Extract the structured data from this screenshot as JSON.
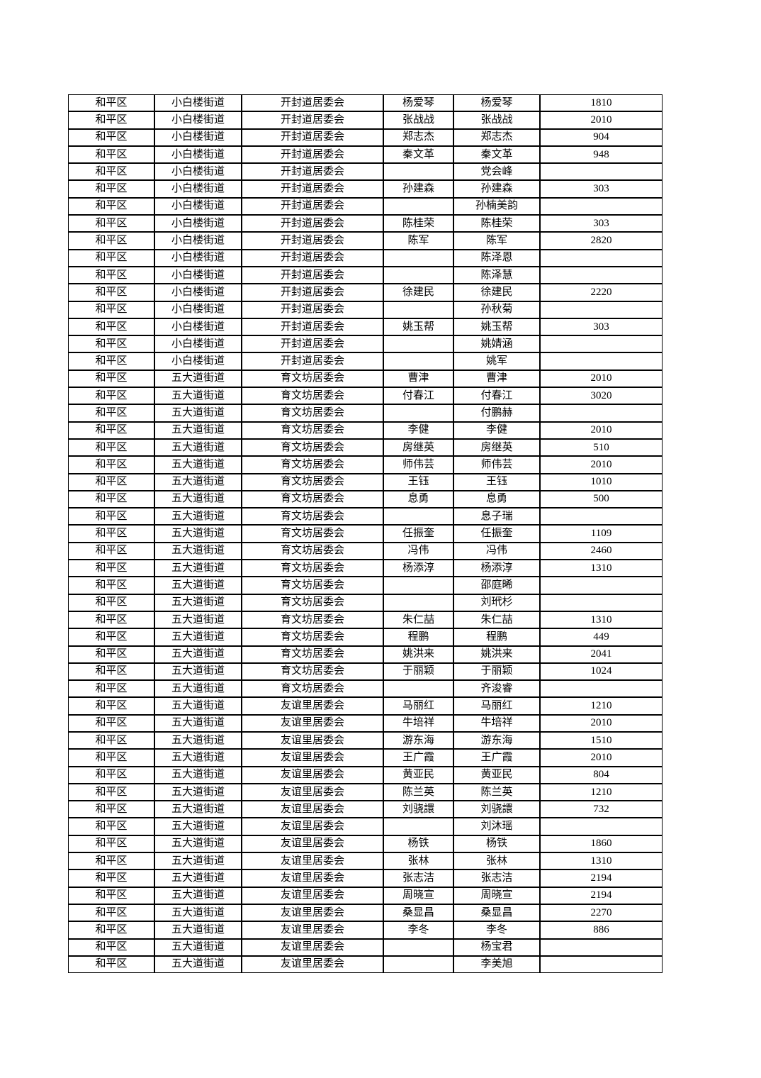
{
  "document": {
    "background_color": "#ffffff",
    "text_color": "#000000",
    "grid_color": "#000000",
    "table": {
      "column_keys": [
        "district",
        "street",
        "committee",
        "name_left",
        "name_right",
        "number"
      ],
      "rows": [
        [
          "和平区",
          "小白楼街道",
          "开封道居委会",
          "杨爱琴",
          "杨爱琴",
          "1810"
        ],
        [
          "和平区",
          "小白楼街道",
          "开封道居委会",
          "张战战",
          "张战战",
          "2010"
        ],
        [
          "和平区",
          "小白楼街道",
          "开封道居委会",
          "郑志杰",
          "郑志杰",
          "904"
        ],
        [
          "和平区",
          "小白楼街道",
          "开封道居委会",
          "秦文革",
          "秦文革",
          "948"
        ],
        [
          "和平区",
          "小白楼街道",
          "开封道居委会",
          "",
          "党会峰",
          ""
        ],
        [
          "和平区",
          "小白楼街道",
          "开封道居委会",
          "孙建森",
          "孙建森",
          "303"
        ],
        [
          "和平区",
          "小白楼街道",
          "开封道居委会",
          "",
          "孙楠美韵",
          ""
        ],
        [
          "和平区",
          "小白楼街道",
          "开封道居委会",
          "陈桂荣",
          "陈桂荣",
          "303"
        ],
        [
          "和平区",
          "小白楼街道",
          "开封道居委会",
          "陈军",
          "陈军",
          "2820"
        ],
        [
          "和平区",
          "小白楼街道",
          "开封道居委会",
          "",
          "陈泽恩",
          ""
        ],
        [
          "和平区",
          "小白楼街道",
          "开封道居委会",
          "",
          "陈泽慧",
          ""
        ],
        [
          "和平区",
          "小白楼街道",
          "开封道居委会",
          "徐建民",
          "徐建民",
          "2220"
        ],
        [
          "和平区",
          "小白楼街道",
          "开封道居委会",
          "",
          "孙秋菊",
          ""
        ],
        [
          "和平区",
          "小白楼街道",
          "开封道居委会",
          "姚玉帮",
          "姚玉帮",
          "303"
        ],
        [
          "和平区",
          "小白楼街道",
          "开封道居委会",
          "",
          "姚婧涵",
          ""
        ],
        [
          "和平区",
          "小白楼街道",
          "开封道居委会",
          "",
          "姚军",
          ""
        ],
        [
          "和平区",
          "五大道街道",
          "育文坊居委会",
          "曹津",
          "曹津",
          "2010"
        ],
        [
          "和平区",
          "五大道街道",
          "育文坊居委会",
          "付春江",
          "付春江",
          "3020"
        ],
        [
          "和平区",
          "五大道街道",
          "育文坊居委会",
          "",
          "付鹏赫",
          ""
        ],
        [
          "和平区",
          "五大道街道",
          "育文坊居委会",
          "李健",
          "李健",
          "2010"
        ],
        [
          "和平区",
          "五大道街道",
          "育文坊居委会",
          "房继英",
          "房继英",
          "510"
        ],
        [
          "和平区",
          "五大道街道",
          "育文坊居委会",
          "师伟芸",
          "师伟芸",
          "2010"
        ],
        [
          "和平区",
          "五大道街道",
          "育文坊居委会",
          "王钰",
          "王钰",
          "1010"
        ],
        [
          "和平区",
          "五大道街道",
          "育文坊居委会",
          "息勇",
          "息勇",
          "500"
        ],
        [
          "和平区",
          "五大道街道",
          "育文坊居委会",
          "",
          "息子瑞",
          ""
        ],
        [
          "和平区",
          "五大道街道",
          "育文坊居委会",
          "任振奎",
          "任振奎",
          "1109"
        ],
        [
          "和平区",
          "五大道街道",
          "育文坊居委会",
          "冯伟",
          "冯伟",
          "2460"
        ],
        [
          "和平区",
          "五大道街道",
          "育文坊居委会",
          "杨添淳",
          "杨添淳",
          "1310"
        ],
        [
          "和平区",
          "五大道街道",
          "育文坊居委会",
          "",
          "邵庭晞",
          ""
        ],
        [
          "和平区",
          "五大道街道",
          "育文坊居委会",
          "",
          "刘玳杉",
          ""
        ],
        [
          "和平区",
          "五大道街道",
          "育文坊居委会",
          "朱仁喆",
          "朱仁喆",
          "1310"
        ],
        [
          "和平区",
          "五大道街道",
          "育文坊居委会",
          "程鹏",
          "程鹏",
          "449"
        ],
        [
          "和平区",
          "五大道街道",
          "育文坊居委会",
          "姚洪来",
          "姚洪来",
          "2041"
        ],
        [
          "和平区",
          "五大道街道",
          "育文坊居委会",
          "于丽颖",
          "于丽颖",
          "1024"
        ],
        [
          "和平区",
          "五大道街道",
          "育文坊居委会",
          "",
          "齐浚睿",
          ""
        ],
        [
          "和平区",
          "五大道街道",
          "友谊里居委会",
          "马丽红",
          "马丽红",
          "1210"
        ],
        [
          "和平区",
          "五大道街道",
          "友谊里居委会",
          "牛培祥",
          "牛培祥",
          "2010"
        ],
        [
          "和平区",
          "五大道街道",
          "友谊里居委会",
          "游东海",
          "游东海",
          "1510"
        ],
        [
          "和平区",
          "五大道街道",
          "友谊里居委会",
          "王广霞",
          "王广霞",
          "2010"
        ],
        [
          "和平区",
          "五大道街道",
          "友谊里居委会",
          "黄亚民",
          "黄亚民",
          "804"
        ],
        [
          "和平区",
          "五大道街道",
          "友谊里居委会",
          "陈兰英",
          "陈兰英",
          "1210"
        ],
        [
          "和平区",
          "五大道街道",
          "友谊里居委会",
          "刘骁譞",
          "刘骁譞",
          "732"
        ],
        [
          "和平区",
          "五大道街道",
          "友谊里居委会",
          "",
          "刘沐瑶",
          ""
        ],
        [
          "和平区",
          "五大道街道",
          "友谊里居委会",
          "杨铁",
          "杨铁",
          "1860"
        ],
        [
          "和平区",
          "五大道街道",
          "友谊里居委会",
          "张林",
          "张林",
          "1310"
        ],
        [
          "和平区",
          "五大道街道",
          "友谊里居委会",
          "张志洁",
          "张志洁",
          "2194"
        ],
        [
          "和平区",
          "五大道街道",
          "友谊里居委会",
          "周晓宣",
          "周晓宣",
          "2194"
        ],
        [
          "和平区",
          "五大道街道",
          "友谊里居委会",
          "桑显昌",
          "桑显昌",
          "2270"
        ],
        [
          "和平区",
          "五大道街道",
          "友谊里居委会",
          "李冬",
          "李冬",
          "886"
        ],
        [
          "和平区",
          "五大道街道",
          "友谊里居委会",
          "",
          "杨宝君",
          ""
        ],
        [
          "和平区",
          "五大道街道",
          "友谊里居委会",
          "",
          "李美旭",
          ""
        ]
      ]
    }
  }
}
